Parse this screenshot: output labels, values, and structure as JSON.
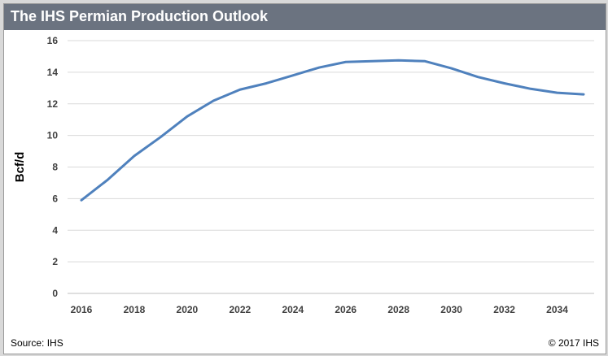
{
  "header": {
    "title": "The IHS Permian Production Outlook"
  },
  "footer": {
    "source": "Source: IHS",
    "copyright": "© 2017 IHS"
  },
  "colors": {
    "title_bar": "#6b7380",
    "line": "#4f81bd",
    "grid": "#d9d9d9"
  },
  "chart_data": {
    "type": "line",
    "title": "",
    "xlabel": "",
    "ylabel": "Bcf/d",
    "x": [
      2016,
      2017,
      2018,
      2019,
      2020,
      2021,
      2022,
      2023,
      2024,
      2025,
      2026,
      2027,
      2028,
      2029,
      2030,
      2031,
      2032,
      2033,
      2034,
      2035
    ],
    "series": [
      {
        "values": [
          5.9,
          7.2,
          8.7,
          9.9,
          11.2,
          12.2,
          12.9,
          13.3,
          13.8,
          14.3,
          14.65,
          14.7,
          14.75,
          14.7,
          14.25,
          13.7,
          13.3,
          12.95,
          12.7,
          12.6
        ]
      }
    ],
    "ylim": [
      0,
      16
    ],
    "yticks": [
      0,
      2,
      4,
      6,
      8,
      10,
      12,
      14,
      16
    ],
    "xticks": [
      2016,
      2018,
      2020,
      2022,
      2024,
      2026,
      2028,
      2030,
      2032,
      2034
    ],
    "grid": true,
    "legend": "none"
  }
}
